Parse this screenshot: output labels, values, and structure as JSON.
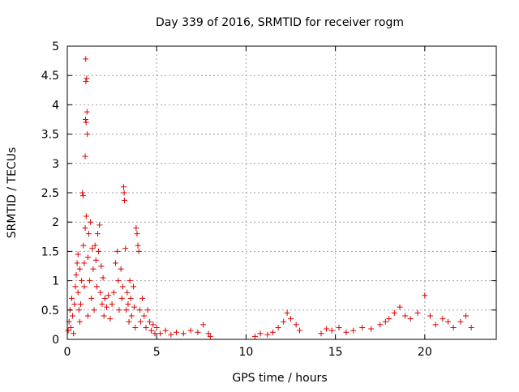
{
  "chart_data": {
    "type": "scatter",
    "title": "Day 339 of 2016, SRMTID for receiver rogm",
    "xlabel": "GPS time / hours",
    "ylabel": "SRMTID / TECUs",
    "xlim": [
      0,
      24
    ],
    "ylim": [
      0,
      5
    ],
    "grid": true,
    "marker": "+",
    "x_ticks": [
      0,
      5,
      10,
      15,
      20
    ],
    "x_tick_labels": [
      "0",
      "5",
      "10",
      "15",
      "20"
    ],
    "y_ticks": [
      0,
      0.5,
      1,
      1.5,
      2,
      2.5,
      3,
      3.5,
      4,
      4.5,
      5
    ],
    "y_tick_labels": [
      "0",
      "0.5",
      "1",
      "1.5",
      "2",
      "2.5",
      "3",
      "3.5",
      "4",
      "4.5",
      "5"
    ],
    "series": [
      {
        "name": "SRMTID",
        "color": "#dd0000",
        "points": [
          [
            0.05,
            0.15
          ],
          [
            0.1,
            0.3
          ],
          [
            0.15,
            0.5
          ],
          [
            0.2,
            0.2
          ],
          [
            0.25,
            0.7
          ],
          [
            0.3,
            0.4
          ],
          [
            0.35,
            0.1
          ],
          [
            0.4,
            0.6
          ],
          [
            0.45,
            0.9
          ],
          [
            0.5,
            1.1
          ],
          [
            0.55,
            1.3
          ],
          [
            0.6,
            1.45
          ],
          [
            0.6,
            0.8
          ],
          [
            0.65,
            0.5
          ],
          [
            0.7,
            1.2
          ],
          [
            0.7,
            0.3
          ],
          [
            0.75,
            0.6
          ],
          [
            0.8,
            1.0
          ],
          [
            0.85,
            2.5
          ],
          [
            0.88,
            2.45
          ],
          [
            0.9,
            1.6
          ],
          [
            0.95,
            0.9
          ],
          [
            0.95,
            1.3
          ],
          [
            1.0,
            3.12
          ],
          [
            1.0,
            1.9
          ],
          [
            1.02,
            3.75
          ],
          [
            1.03,
            4.78
          ],
          [
            1.04,
            4.4
          ],
          [
            1.05,
            3.7
          ],
          [
            1.06,
            2.1
          ],
          [
            1.08,
            4.45
          ],
          [
            1.1,
            3.88
          ],
          [
            1.12,
            3.5
          ],
          [
            1.15,
            1.4
          ],
          [
            1.15,
            0.4
          ],
          [
            1.2,
            1.8
          ],
          [
            1.25,
            1.0
          ],
          [
            1.3,
            2.0
          ],
          [
            1.35,
            0.7
          ],
          [
            1.4,
            1.55
          ],
          [
            1.45,
            1.2
          ],
          [
            1.5,
            0.5
          ],
          [
            1.55,
            1.6
          ],
          [
            1.6,
            1.35
          ],
          [
            1.65,
            0.9
          ],
          [
            1.7,
            1.8
          ],
          [
            1.75,
            1.5
          ],
          [
            1.8,
            1.95
          ],
          [
            1.85,
            0.8
          ],
          [
            1.9,
            1.25
          ],
          [
            1.95,
            0.6
          ],
          [
            2.0,
            1.05
          ],
          [
            2.05,
            0.4
          ],
          [
            2.1,
            0.7
          ],
          [
            2.2,
            0.55
          ],
          [
            2.3,
            0.75
          ],
          [
            2.4,
            0.35
          ],
          [
            2.5,
            0.6
          ],
          [
            2.6,
            0.8
          ],
          [
            2.7,
            1.3
          ],
          [
            2.8,
            1.5
          ],
          [
            2.85,
            1.0
          ],
          [
            2.9,
            0.5
          ],
          [
            3.0,
            1.2
          ],
          [
            3.05,
            0.7
          ],
          [
            3.1,
            0.9
          ],
          [
            3.15,
            2.6
          ],
          [
            3.18,
            2.5
          ],
          [
            3.2,
            2.37
          ],
          [
            3.25,
            1.55
          ],
          [
            3.3,
            0.5
          ],
          [
            3.35,
            0.8
          ],
          [
            3.4,
            0.6
          ],
          [
            3.45,
            0.3
          ],
          [
            3.5,
            1.0
          ],
          [
            3.55,
            0.7
          ],
          [
            3.6,
            0.4
          ],
          [
            3.7,
            0.9
          ],
          [
            3.75,
            0.55
          ],
          [
            3.8,
            0.2
          ],
          [
            3.85,
            1.9
          ],
          [
            3.9,
            1.8
          ],
          [
            3.95,
            1.6
          ],
          [
            4.0,
            1.5
          ],
          [
            4.05,
            0.5
          ],
          [
            4.1,
            0.3
          ],
          [
            4.2,
            0.7
          ],
          [
            4.3,
            0.4
          ],
          [
            4.4,
            0.2
          ],
          [
            4.5,
            0.5
          ],
          [
            4.6,
            0.3
          ],
          [
            4.7,
            0.15
          ],
          [
            4.8,
            0.25
          ],
          [
            4.9,
            0.1
          ],
          [
            5.0,
            0.2
          ],
          [
            5.2,
            0.1
          ],
          [
            5.5,
            0.15
          ],
          [
            5.8,
            0.08
          ],
          [
            6.1,
            0.12
          ],
          [
            6.5,
            0.1
          ],
          [
            6.9,
            0.15
          ],
          [
            7.3,
            0.12
          ],
          [
            7.6,
            0.25
          ],
          [
            7.9,
            0.1
          ],
          [
            8.0,
            0.05
          ],
          [
            10.5,
            0.05
          ],
          [
            10.8,
            0.1
          ],
          [
            11.2,
            0.08
          ],
          [
            11.5,
            0.12
          ],
          [
            11.8,
            0.2
          ],
          [
            12.1,
            0.3
          ],
          [
            12.3,
            0.45
          ],
          [
            12.5,
            0.35
          ],
          [
            12.8,
            0.25
          ],
          [
            13.0,
            0.15
          ],
          [
            14.2,
            0.1
          ],
          [
            14.5,
            0.18
          ],
          [
            14.8,
            0.15
          ],
          [
            15.2,
            0.2
          ],
          [
            15.6,
            0.12
          ],
          [
            16.0,
            0.15
          ],
          [
            16.5,
            0.2
          ],
          [
            17.0,
            0.18
          ],
          [
            17.5,
            0.25
          ],
          [
            17.8,
            0.3
          ],
          [
            18.0,
            0.35
          ],
          [
            18.3,
            0.45
          ],
          [
            18.6,
            0.55
          ],
          [
            18.9,
            0.4
          ],
          [
            19.2,
            0.35
          ],
          [
            19.6,
            0.45
          ],
          [
            20.0,
            0.75
          ],
          [
            20.3,
            0.4
          ],
          [
            20.6,
            0.25
          ],
          [
            21.0,
            0.35
          ],
          [
            21.3,
            0.3
          ],
          [
            21.6,
            0.2
          ],
          [
            22.0,
            0.3
          ],
          [
            22.3,
            0.4
          ],
          [
            22.6,
            0.2
          ]
        ]
      }
    ]
  }
}
